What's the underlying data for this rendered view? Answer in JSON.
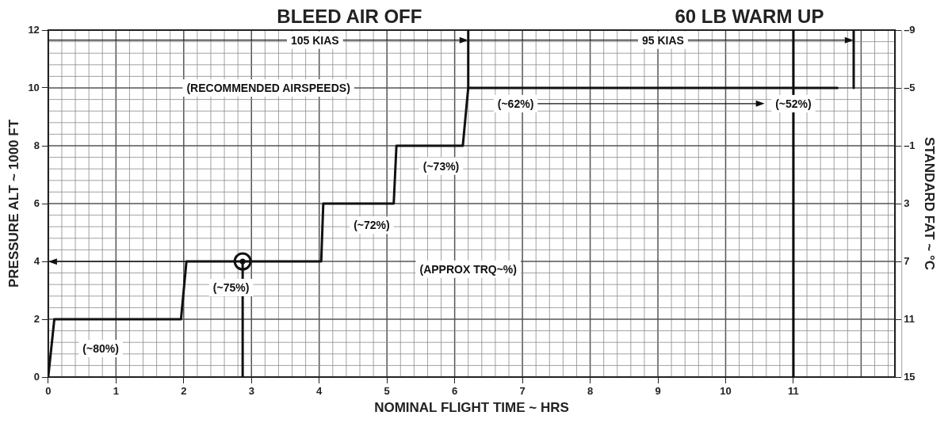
{
  "chart_data": {
    "type": "line",
    "title": "BLEED AIR OFF",
    "subtitle": "60 LB WARM UP",
    "xlabel": "NOMINAL FLIGHT TIME ~ HRS",
    "ylabel": "PRESSURE ALT ~ 1000 FT",
    "y2label": "STANDARD FAT ~ °C",
    "xlim": [
      0,
      12.5
    ],
    "xticks": [
      0,
      1,
      2,
      3,
      4,
      5,
      6,
      7,
      8,
      9,
      10,
      11
    ],
    "ylim": [
      0,
      12
    ],
    "yticks": [
      0,
      2,
      4,
      6,
      8,
      10,
      12
    ],
    "y2lim": [
      15,
      -9
    ],
    "y2ticks": [
      {
        "value": -9,
        "label": "–9"
      },
      {
        "value": -5,
        "label": "–5"
      },
      {
        "value": -1,
        "label": "–1"
      },
      3,
      7,
      11,
      15
    ],
    "grid": true,
    "legend": false,
    "series": [
      {
        "color": "#111111",
        "x": [
          0,
          0.09,
          1.96,
          2.04,
          4.03,
          4.06,
          5.1,
          5.14,
          6.12,
          6.2,
          11.65
        ],
        "values": [
          0,
          2,
          2,
          4,
          4,
          6,
          6,
          8,
          8,
          10,
          10
        ]
      },
      {
        "color": "#111111",
        "x": [
          2.87,
          2.87
        ],
        "values": [
          0,
          4
        ]
      },
      {
        "type": "scatter",
        "color": "#111111",
        "x": [
          2.87
        ],
        "values": [
          4
        ],
        "marker": "circle"
      },
      {
        "color": "#000000",
        "x": [
          11,
          11
        ],
        "values": [
          0,
          12
        ]
      },
      {
        "color": "#111111",
        "x": [
          6.2,
          6.2
        ],
        "values": [
          10,
          12
        ]
      },
      {
        "color": "#111111",
        "x": [
          11.89,
          11.89
        ],
        "values": [
          10,
          12
        ]
      }
    ],
    "annotations": [
      "105 KIAS",
      "95 KIAS",
      "(RECOMMENDED AIRSPEEDS)",
      "(~62%)",
      "(~52%)",
      "(~73%)",
      "(~72%)",
      "(APPROX TRQ~%)",
      "(~75%)",
      "(~80%)"
    ]
  }
}
